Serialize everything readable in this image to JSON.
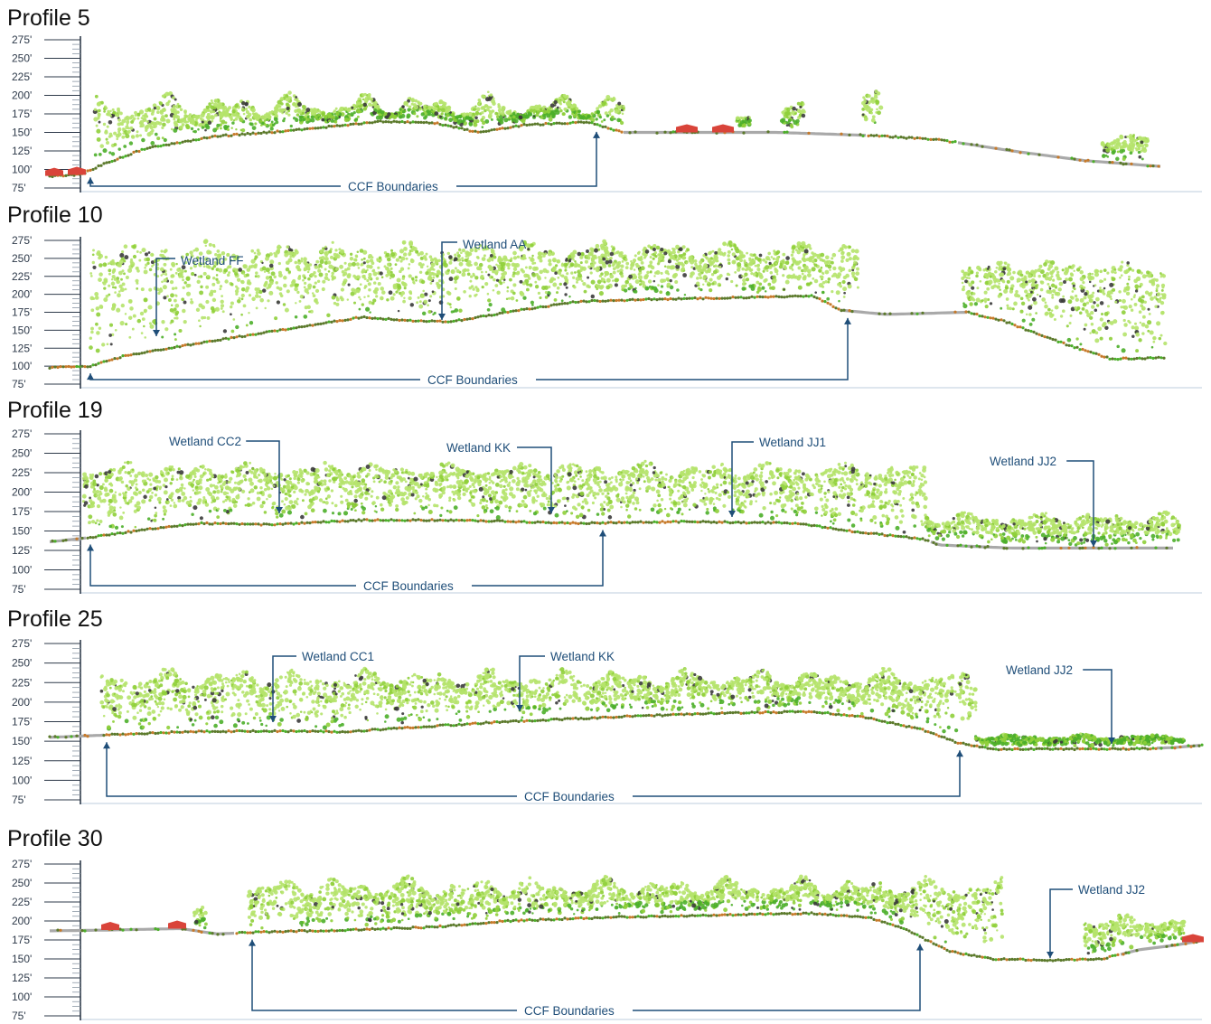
{
  "y_ticks": [
    "275'",
    "250'",
    "225'",
    "200'",
    "175'",
    "150'",
    "125'",
    "100'",
    "75'"
  ],
  "colors": {
    "canopy": "#b5e36b",
    "canopy_dark": "#8fcf3a",
    "understory": "#4caf2a",
    "ground": "#5c7a2c",
    "ground_orange": "#c77a2a",
    "paved": "#a9a9a9",
    "building": "#d9443a",
    "dark_point": "#3b3b3b",
    "annotation": "#1f4e79",
    "axis": "#2e3a4a"
  },
  "profiles": [
    {
      "title": "Profile 5",
      "ccf_label": "CCF Boundaries",
      "wetlands": []
    },
    {
      "title": "Profile 10",
      "ccf_label": "CCF Boundaries",
      "wetlands": [
        "Wetland FF",
        "Wetland AA"
      ]
    },
    {
      "title": "Profile 19",
      "ccf_label": "CCF Boundaries",
      "wetlands": [
        "Wetland CC2",
        "Wetland KK",
        "Wetland JJ1",
        "Wetland JJ2"
      ]
    },
    {
      "title": "Profile 25",
      "ccf_label": "CCF Boundaries",
      "wetlands": [
        "Wetland CC1",
        "Wetland KK",
        "Wetland JJ2"
      ]
    },
    {
      "title": "Profile 30",
      "ccf_label": "CCF Boundaries",
      "wetlands": [
        "Wetland JJ2"
      ]
    }
  ]
}
